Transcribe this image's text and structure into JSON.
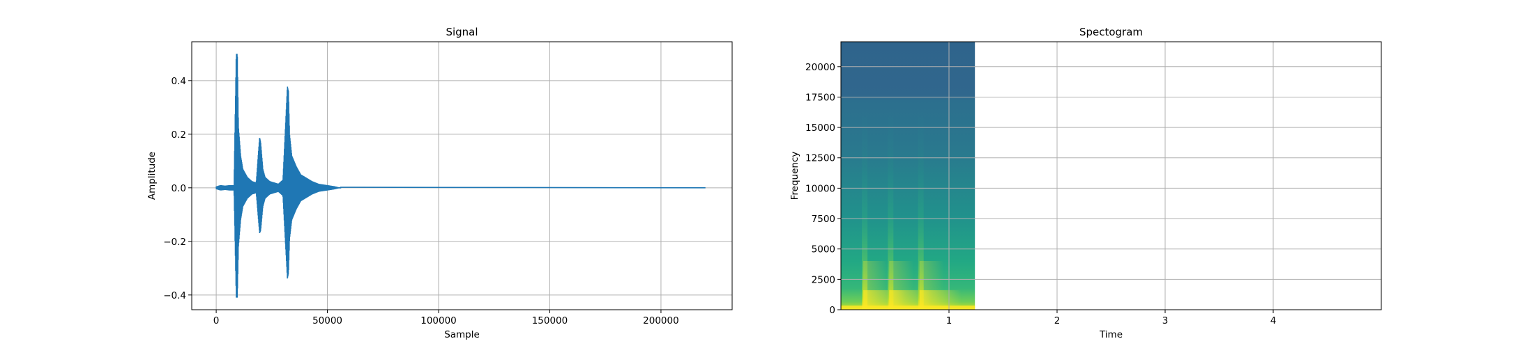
{
  "chart_data": [
    {
      "type": "line",
      "title": "Signal",
      "xlabel": "Sample",
      "ylabel": "Amplitude",
      "xlim": [
        -11000,
        232000
      ],
      "ylim": [
        -0.455,
        0.545
      ],
      "xticks": [
        0,
        50000,
        100000,
        150000,
        200000
      ],
      "yticks": [
        -0.4,
        -0.2,
        0.0,
        0.2,
        0.4
      ],
      "xtick_labels": [
        "0",
        "50000",
        "100000",
        "150000",
        "200000"
      ],
      "ytick_labels": [
        "−0.4",
        "−0.2",
        "0.0",
        "0.2",
        "0.4"
      ],
      "grid": true,
      "color": "#1f77b4",
      "envelope": {
        "x": [
          0,
          2000,
          4000,
          6000,
          8000,
          9000,
          9500,
          10000,
          11000,
          12000,
          14000,
          16000,
          18000,
          19500,
          20000,
          21000,
          22000,
          24000,
          26000,
          28000,
          30000,
          32000,
          32500,
          33000,
          34000,
          36000,
          38000,
          40000,
          43000,
          46000,
          50000,
          53000,
          55000,
          220000
        ],
        "upper": [
          0.005,
          0.01,
          0.008,
          0.01,
          0.01,
          0.5,
          0.5,
          0.23,
          0.12,
          0.07,
          0.04,
          0.025,
          0.02,
          0.19,
          0.17,
          0.07,
          0.04,
          0.025,
          0.02,
          0.015,
          0.03,
          0.38,
          0.36,
          0.2,
          0.12,
          0.08,
          0.05,
          0.04,
          0.025,
          0.015,
          0.01,
          0.006,
          0.002,
          0.001
        ],
        "lower": [
          -0.005,
          -0.01,
          -0.008,
          -0.01,
          -0.01,
          -0.41,
          -0.41,
          -0.22,
          -0.12,
          -0.07,
          -0.04,
          -0.025,
          -0.02,
          -0.17,
          -0.16,
          -0.07,
          -0.04,
          -0.025,
          -0.02,
          -0.015,
          -0.03,
          -0.34,
          -0.32,
          -0.19,
          -0.12,
          -0.08,
          -0.05,
          -0.04,
          -0.025,
          -0.015,
          -0.01,
          -0.006,
          -0.002,
          -0.001
        ]
      }
    },
    {
      "type": "heatmap",
      "title": "Spectogram",
      "xlabel": "Time",
      "ylabel": "Frequency",
      "xlim": [
        0,
        5
      ],
      "ylim": [
        0,
        22050
      ],
      "xticks": [
        1,
        2,
        3,
        4
      ],
      "yticks": [
        0,
        2500,
        5000,
        7500,
        10000,
        12500,
        15000,
        17500,
        20000
      ],
      "xtick_labels": [
        "1",
        "2",
        "3",
        "4"
      ],
      "ytick_labels": [
        "0",
        "2500",
        "5000",
        "7500",
        "10000",
        "12500",
        "15000",
        "17500",
        "20000"
      ],
      "grid": true,
      "data_extent_x": [
        0,
        1.24
      ],
      "onsets": [
        0.22,
        0.46,
        0.74
      ],
      "colormap": "viridis",
      "colors": {
        "background": "#2f6b8e",
        "low": "#1f9a8a",
        "high": "#fde725"
      }
    }
  ]
}
